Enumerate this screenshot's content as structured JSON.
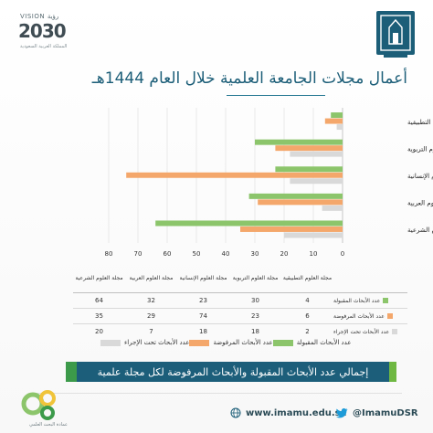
{
  "header": {
    "vision_label": "VISION رؤية",
    "vision_year": "2030",
    "vision_sub": "المملكة العربية السعودية",
    "title": "أعمال مجلات الجامعة العلمية خلال العام 1444هـ"
  },
  "colors": {
    "accepted": "#8cc56b",
    "rejected": "#f4a76b",
    "in_process": "#d9d9d9",
    "title": "#1c5e78",
    "banner": "#1c5e7a",
    "grid": "#dcdcdc"
  },
  "chart_data": {
    "type": "bar",
    "orientation": "horizontal",
    "categories": [
      "مجلة العلوم التطبيقية",
      "مجلة العلوم التربوية",
      "مجلة العلوم الإنسانية",
      "مجلة العلوم العربية",
      "مجلة العلوم الشرعية"
    ],
    "series": [
      {
        "name": "عدد الأبحاث المقبولة",
        "values": [
          4,
          30,
          23,
          32,
          64
        ],
        "color": "#8cc56b"
      },
      {
        "name": "عدد الأبحاث المرفوضة",
        "values": [
          6,
          23,
          74,
          29,
          35
        ],
        "color": "#f4a76b"
      },
      {
        "name": "عدد الأبحاث تحت الإجراء",
        "values": [
          2,
          18,
          18,
          7,
          20
        ],
        "color": "#d9d9d9"
      }
    ],
    "x_ticks": [
      "0",
      "10",
      "20",
      "30",
      "40",
      "50",
      "60",
      "70",
      "80"
    ],
    "xlim": [
      0,
      80
    ],
    "x_direction": "reversed",
    "grid": true,
    "legend_position": "bottom"
  },
  "table": {
    "headers": [
      "مجلة العلوم التطبيقية",
      "مجلة العلوم التربوية",
      "مجلة العلوم الإنسانية",
      "مجلة العلوم العربية",
      "مجلة العلوم الشرعية"
    ],
    "rows": [
      {
        "label": "عدد الأبحاث المقبولة",
        "values": [
          "4",
          "30",
          "23",
          "32",
          "64"
        ]
      },
      {
        "label": "عدد الأبحاث المرفوضة",
        "values": [
          "6",
          "23",
          "74",
          "29",
          "35"
        ]
      },
      {
        "label": "عدد الأبحاث تحت الإجراء",
        "values": [
          "2",
          "18",
          "18",
          "7",
          "20"
        ]
      }
    ]
  },
  "legend": {
    "accepted": "عدد الأبحاث المقبولة",
    "rejected": "عدد الأبحاث المرفوضة",
    "in_process": "عدد الأبحاث تحت الإجراء"
  },
  "banner": {
    "text": "إجمالي عدد الأبحاث المقبولة والأبحاث المرفوضة لكل مجلة علمية"
  },
  "footer": {
    "deanship_name": "عمادة البحث العلمي",
    "website": "www.imamu.edu.sa",
    "twitter": "@ImamuDSR",
    "web_icon": "globe-icon",
    "twitter_icon": "twitter-bird-icon"
  }
}
